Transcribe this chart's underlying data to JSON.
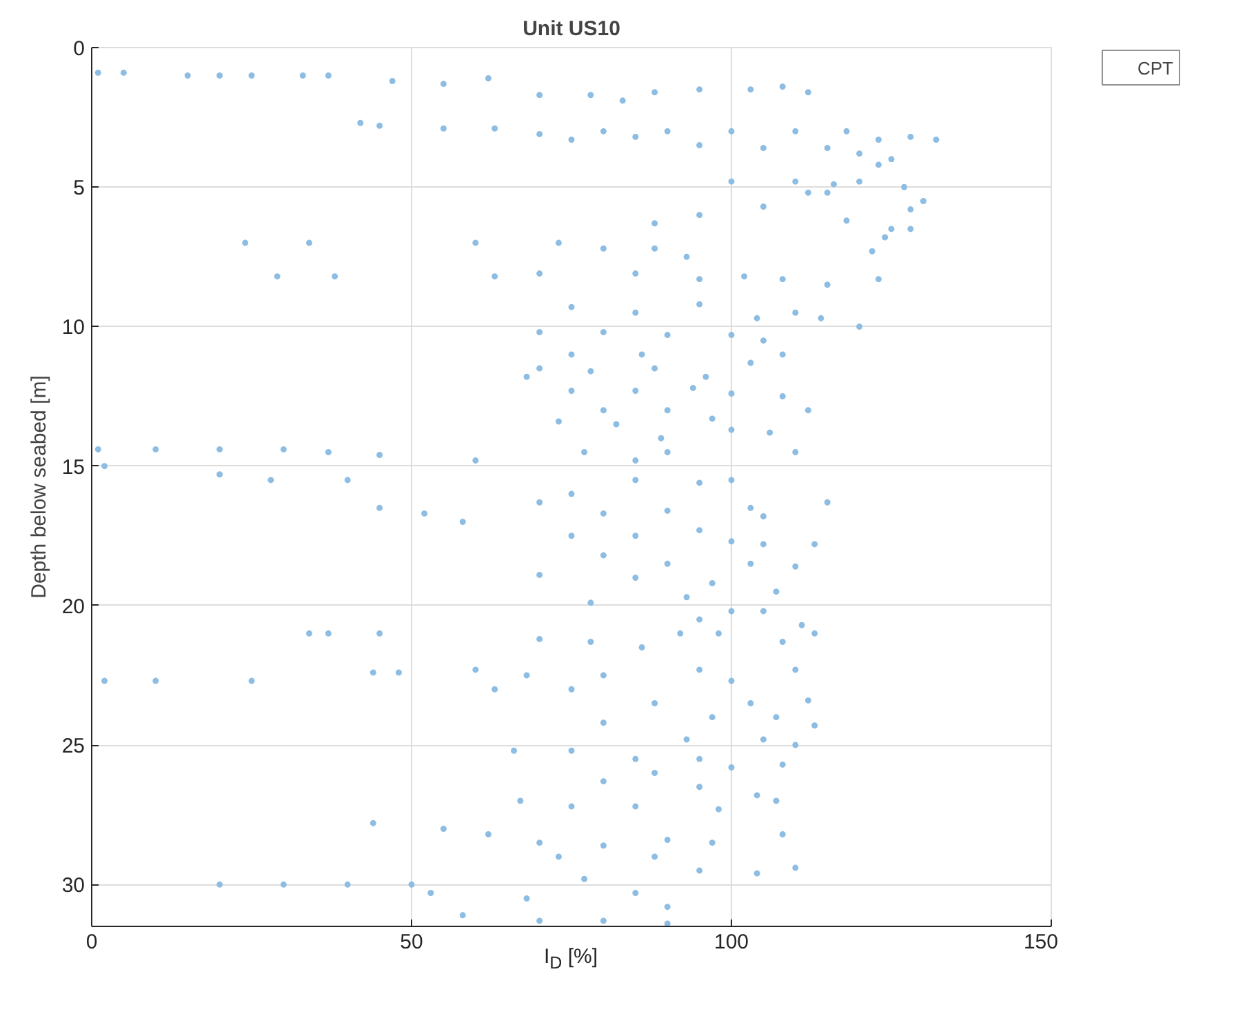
{
  "chart_data": {
    "type": "scatter",
    "title": "Unit US10",
    "xlabel": "I$_{D}$ [%]",
    "ylabel": "Depth below seabed [m]",
    "xlim": [
      0,
      150
    ],
    "xticks": [
      0,
      50,
      100,
      150
    ],
    "ylim": [
      31.5,
      0
    ],
    "yticks": [
      0,
      5,
      10,
      15,
      20,
      25,
      30
    ],
    "grid": true,
    "legend": "top right",
    "marker": "circle",
    "series": [
      {
        "name": "CPT",
        "color": "#8dbde3",
        "x": [
          1,
          5,
          15,
          20,
          25,
          33,
          37,
          47,
          55,
          62,
          70,
          78,
          83,
          88,
          95,
          103,
          108,
          112,
          42,
          45,
          55,
          63,
          70,
          80,
          90,
          100,
          110,
          118,
          123,
          128,
          132,
          75,
          85,
          95,
          105,
          115,
          120,
          125,
          123,
          100,
          110,
          116,
          115,
          120,
          127,
          130,
          128,
          88,
          95,
          105,
          112,
          118,
          125,
          128,
          24,
          34,
          60,
          73,
          80,
          88,
          93,
          124,
          122,
          29,
          38,
          63,
          70,
          85,
          95,
          102,
          108,
          115,
          123,
          75,
          85,
          95,
          104,
          110,
          114,
          120,
          70,
          80,
          90,
          100,
          105,
          108,
          75,
          86,
          70,
          78,
          88,
          96,
          103,
          68,
          75,
          85,
          94,
          100,
          108,
          112,
          80,
          90,
          73,
          82,
          97,
          100,
          106,
          89,
          30,
          37,
          45,
          1,
          10,
          20,
          77,
          90,
          110,
          60,
          85,
          2,
          20,
          28,
          40,
          95,
          100,
          103,
          115,
          85,
          75,
          45,
          52,
          70,
          80,
          90,
          105,
          58,
          75,
          85,
          95,
          100,
          105,
          113,
          80,
          90,
          103,
          110,
          70,
          85,
          97,
          107,
          78,
          93,
          34,
          37,
          45,
          100,
          95,
          105,
          111,
          92,
          98,
          108,
          113,
          70,
          78,
          86,
          2,
          10,
          25,
          44,
          48,
          60,
          68,
          80,
          95,
          100,
          110,
          63,
          75,
          88,
          103,
          112,
          97,
          107,
          113,
          80,
          93,
          105,
          110,
          66,
          75,
          85,
          95,
          100,
          108,
          88,
          80,
          95,
          104,
          67,
          75,
          85,
          98,
          107,
          44,
          55,
          62,
          70,
          80,
          90,
          97,
          108,
          73,
          88,
          95,
          104,
          110,
          77,
          85,
          20,
          30,
          40,
          50,
          53,
          68,
          90,
          58,
          70,
          80,
          90
        ],
        "values": [
          0.9,
          0.9,
          1,
          1,
          1,
          1,
          1,
          1.2,
          1.3,
          1.1,
          1.7,
          1.7,
          1.9,
          1.6,
          1.5,
          1.5,
          1.4,
          1.6,
          2.7,
          2.8,
          2.9,
          2.9,
          3.1,
          3.0,
          3.0,
          3.0,
          3.0,
          3.0,
          3.3,
          3.2,
          3.3,
          3.3,
          3.2,
          3.5,
          3.6,
          3.6,
          3.8,
          4.0,
          4.2,
          4.8,
          4.8,
          4.9,
          5.2,
          4.8,
          5.0,
          5.5,
          5.8,
          6.3,
          6.0,
          5.7,
          5.2,
          6.2,
          6.5,
          6.5,
          7,
          7,
          7,
          7.0,
          7.2,
          7.2,
          7.5,
          6.8,
          7.3,
          8.2,
          8.2,
          8.2,
          8.1,
          8.1,
          8.3,
          8.2,
          8.3,
          8.5,
          8.3,
          9.3,
          9.5,
          9.2,
          9.7,
          9.5,
          9.7,
          10.0,
          10.2,
          10.2,
          10.3,
          10.3,
          10.5,
          11.0,
          11.0,
          11.0,
          11.5,
          11.6,
          11.5,
          11.8,
          11.3,
          11.8,
          12.3,
          12.3,
          12.2,
          12.4,
          12.5,
          13.0,
          13.0,
          13.0,
          13.4,
          13.5,
          13.3,
          13.7,
          13.8,
          14.0,
          14.4,
          14.5,
          14.6,
          14.4,
          14.4,
          14.4,
          14.5,
          14.5,
          14.5,
          14.8,
          14.8,
          15.0,
          15.3,
          15.5,
          15.5,
          15.6,
          15.5,
          16.5,
          16.3,
          15.5,
          16.0,
          16.5,
          16.7,
          16.3,
          16.7,
          16.6,
          16.8,
          17.0,
          17.5,
          17.5,
          17.3,
          17.7,
          17.8,
          17.8,
          18.2,
          18.5,
          18.5,
          18.6,
          18.9,
          19.0,
          19.2,
          19.5,
          19.9,
          19.7,
          21,
          21,
          21,
          20.2,
          20.5,
          20.2,
          20.7,
          21.0,
          21.0,
          21.3,
          21.0,
          21.2,
          21.3,
          21.5,
          22.7,
          22.7,
          22.7,
          22.4,
          22.4,
          22.3,
          22.5,
          22.5,
          22.3,
          22.7,
          22.3,
          23.0,
          23.0,
          23.5,
          23.5,
          23.4,
          24.0,
          24.0,
          24.3,
          24.2,
          24.8,
          24.8,
          25.0,
          25.2,
          25.2,
          25.5,
          25.5,
          25.8,
          25.7,
          26.0,
          26.3,
          26.5,
          26.8,
          27.0,
          27.2,
          27.2,
          27.3,
          27.0,
          27.8,
          28.0,
          28.2,
          28.5,
          28.6,
          28.4,
          28.5,
          28.2,
          29.0,
          29.0,
          29.5,
          29.6,
          29.4,
          29.8,
          30.3,
          30.0,
          30.0,
          30.0,
          30.0,
          30.3,
          30.5,
          30.8,
          31.1,
          31.3,
          31.3,
          31.4
        ]
      }
    ]
  }
}
